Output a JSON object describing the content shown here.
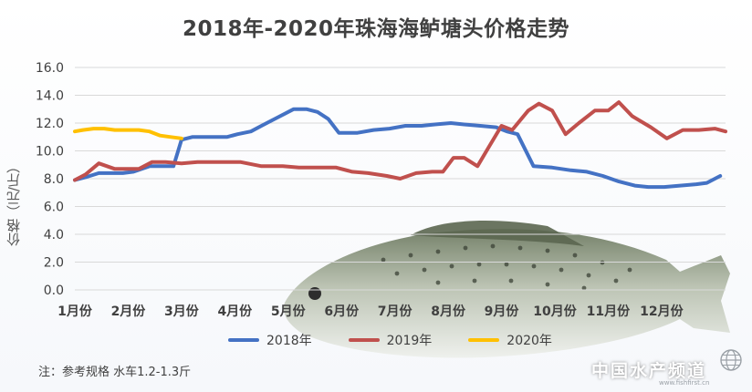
{
  "chart_data": {
    "type": "line",
    "title": "2018年-2020年珠海海鲈塘头价格走势",
    "ylabel": "价格（元/斤）",
    "xlabel": "",
    "ylim": [
      0,
      16
    ],
    "yticks": [
      "0.0",
      "2.0",
      "4.0",
      "6.0",
      "8.0",
      "10.0",
      "12.0",
      "14.0",
      "16.0"
    ],
    "xlim": [
      1,
      13.2
    ],
    "categories": [
      "1月份",
      "2月份",
      "3月份",
      "4月份",
      "5月份",
      "6月份",
      "7月份",
      "8月份",
      "9月份",
      "10月份",
      "11月份",
      "12月份"
    ],
    "grid": true,
    "legend": "bottom",
    "series": [
      {
        "name": "2018年",
        "color": "#4472c4",
        "x": [
          1.0,
          1.2,
          1.45,
          1.9,
          2.1,
          2.4,
          2.55,
          2.7,
          2.85,
          3.0,
          3.2,
          3.5,
          3.85,
          4.05,
          4.3,
          4.5,
          4.8,
          5.1,
          5.35,
          5.55,
          5.75,
          5.95,
          6.1,
          6.3,
          6.6,
          6.9,
          7.2,
          7.5,
          7.75,
          8.05,
          8.3,
          8.6,
          8.9,
          9.1,
          9.3,
          9.6,
          9.95,
          10.3,
          10.6,
          10.9,
          11.2,
          11.5,
          11.75,
          12.05,
          12.35,
          12.65,
          12.85,
          13.1
        ],
        "y": [
          7.9,
          8.1,
          8.4,
          8.4,
          8.5,
          8.9,
          8.9,
          8.9,
          8.9,
          10.8,
          11.0,
          11.0,
          11.0,
          11.2,
          11.4,
          11.8,
          12.4,
          13.0,
          13.0,
          12.8,
          12.3,
          11.3,
          11.3,
          11.3,
          11.5,
          11.6,
          11.8,
          11.8,
          11.9,
          12.0,
          11.9,
          11.8,
          11.7,
          11.4,
          11.2,
          8.9,
          8.8,
          8.6,
          8.5,
          8.2,
          7.8,
          7.5,
          7.4,
          7.4,
          7.5,
          7.6,
          7.7,
          8.2
        ]
      },
      {
        "name": "2019年",
        "color": "#c0504d",
        "x": [
          1.0,
          1.2,
          1.45,
          1.75,
          2.0,
          2.2,
          2.45,
          2.7,
          3.0,
          3.3,
          3.7,
          4.1,
          4.5,
          4.9,
          5.2,
          5.6,
          5.9,
          6.2,
          6.5,
          6.85,
          7.1,
          7.4,
          7.7,
          7.9,
          8.1,
          8.3,
          8.55,
          8.75,
          9.0,
          9.2,
          9.5,
          9.7,
          9.95,
          10.2,
          10.45,
          10.75,
          11.0,
          11.2,
          11.45,
          11.8,
          12.1,
          12.4,
          12.7,
          13.0,
          13.2
        ],
        "y": [
          7.9,
          8.3,
          9.1,
          8.7,
          8.7,
          8.7,
          9.2,
          9.2,
          9.1,
          9.2,
          9.2,
          9.2,
          8.9,
          8.9,
          8.8,
          8.8,
          8.8,
          8.5,
          8.4,
          8.2,
          8.0,
          8.4,
          8.5,
          8.5,
          9.5,
          9.5,
          8.9,
          10.2,
          11.8,
          11.5,
          12.9,
          13.4,
          12.9,
          11.2,
          12.0,
          12.9,
          12.9,
          13.5,
          12.5,
          11.7,
          10.9,
          11.5,
          11.5,
          11.6,
          11.4
        ]
      },
      {
        "name": "2020年",
        "color": "#ffc000",
        "x": [
          1.0,
          1.15,
          1.35,
          1.55,
          1.75,
          1.95,
          2.2,
          2.4,
          2.6,
          2.8,
          3.0
        ],
        "y": [
          11.4,
          11.5,
          11.6,
          11.6,
          11.5,
          11.5,
          11.5,
          11.4,
          11.1,
          11.0,
          10.9
        ]
      }
    ]
  },
  "note": "注：参考规格  水车1.2-1.3斤",
  "watermark": "中国水产频道",
  "watermark_sub": "www.fishfirst.cn"
}
